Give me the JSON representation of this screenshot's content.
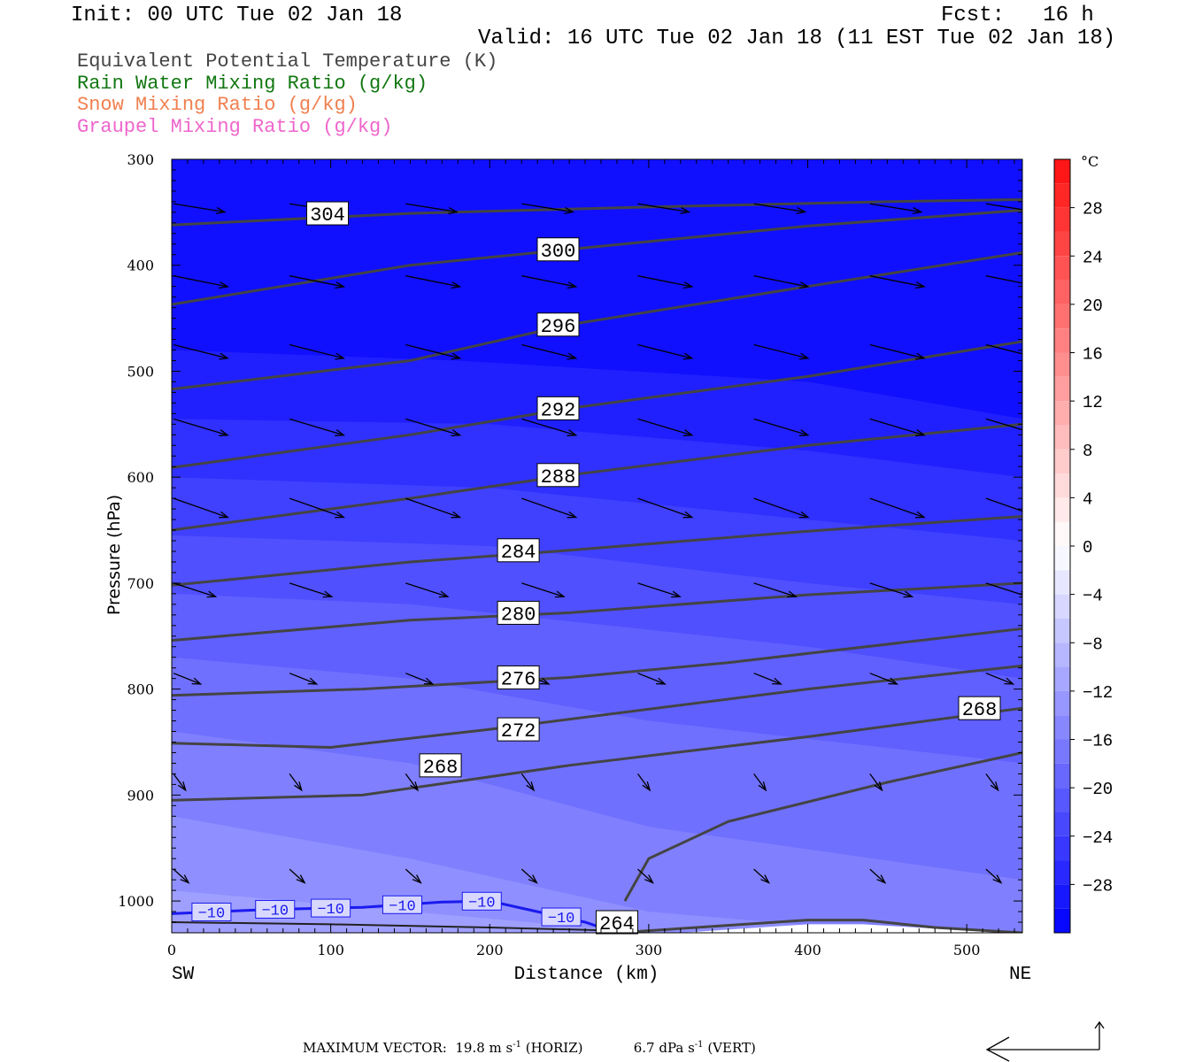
{
  "header": {
    "init": "Init: 00 UTC Tue 02 Jan 18",
    "fcst": "Fcst:   16 h",
    "valid": "Valid: 16 UTC Tue 02 Jan 18 (11 EST Tue 02 Jan 18)"
  },
  "fields": {
    "theta_e": "Equivalent Potential Temperature (K)",
    "rain": "Rain Water Mixing Ratio (g/kg)",
    "snow": "Snow Mixing Ratio (g/kg)",
    "graupel": "Graupel Mixing Ratio (g/kg)"
  },
  "colors": {
    "theta_e": "#444444",
    "rain": "#117711",
    "snow": "#f08050",
    "graupel": "#ee66cc",
    "minus10": "#1a1aee"
  },
  "footer": {
    "max_vector_label": "MAXIMUM VECTOR:",
    "horiz": "19.8 m s",
    "horiz_sup": "-1",
    "horiz_tag": "(HORIZ)",
    "vert": "6.7 dPa s",
    "vert_sup": "-1",
    "vert_tag": "(VERT)"
  },
  "chart_data": {
    "type": "contour",
    "xlabel": "Distance (km)",
    "ylabel": "Pressure (hPa)",
    "x_end_labels": [
      "SW",
      "NE"
    ],
    "xlim": [
      0,
      535
    ],
    "ylim": [
      1030,
      300
    ],
    "x_ticks": [
      0,
      100,
      200,
      300,
      400,
      500
    ],
    "y_ticks": [
      300,
      400,
      500,
      600,
      700,
      800,
      900,
      1000
    ],
    "colorbar": {
      "unit": "°C",
      "range": [
        -32,
        32
      ],
      "tick_labels": [
        "28",
        "24",
        "20",
        "16",
        "12",
        "8",
        "4",
        "0",
        "−4",
        "−8",
        "−12",
        "−16",
        "−20",
        "−24",
        "−28"
      ],
      "tick_values": [
        28,
        24,
        20,
        16,
        12,
        8,
        4,
        0,
        -4,
        -8,
        -12,
        -16,
        -20,
        -24,
        -28
      ]
    },
    "temperature_shading": [
      {
        "level": -30,
        "p": [
          [
            0,
            1050
          ],
          [
            535,
            1050
          ]
        ]
      },
      {
        "level": -28,
        "p": [
          [
            0,
            480
          ],
          [
            180,
            490
          ],
          [
            400,
            510
          ],
          [
            535,
            545
          ]
        ]
      },
      {
        "level": -26,
        "p": [
          [
            0,
            545
          ],
          [
            200,
            550
          ],
          [
            400,
            575
          ],
          [
            535,
            600
          ]
        ]
      },
      {
        "level": -24,
        "p": [
          [
            0,
            600
          ],
          [
            200,
            610
          ],
          [
            400,
            640
          ],
          [
            535,
            660
          ]
        ]
      },
      {
        "level": -22,
        "p": [
          [
            0,
            655
          ],
          [
            200,
            665
          ],
          [
            400,
            700
          ],
          [
            535,
            720
          ]
        ]
      },
      {
        "level": -20,
        "p": [
          [
            0,
            710
          ],
          [
            150,
            720
          ],
          [
            400,
            760
          ],
          [
            535,
            790
          ]
        ]
      },
      {
        "level": -18,
        "p": [
          [
            0,
            770
          ],
          [
            150,
            790
          ],
          [
            300,
            830
          ],
          [
            535,
            870
          ]
        ]
      },
      {
        "level": -16,
        "p": [
          [
            0,
            840
          ],
          [
            150,
            870
          ],
          [
            300,
            930
          ],
          [
            535,
            980
          ]
        ]
      },
      {
        "level": -14,
        "p": [
          [
            0,
            920
          ],
          [
            150,
            960
          ],
          [
            300,
            1010
          ],
          [
            535,
            1040
          ]
        ]
      },
      {
        "level": -12,
        "p": [
          [
            0,
            990
          ],
          [
            150,
            1010
          ],
          [
            300,
            1030
          ],
          [
            535,
            1050
          ]
        ]
      }
    ],
    "theta_e_contours": [
      {
        "label": "304",
        "points": [
          [
            0,
            362
          ],
          [
            150,
            351
          ],
          [
            300,
            345
          ],
          [
            450,
            340
          ],
          [
            535,
            338
          ]
        ]
      },
      {
        "label": "300",
        "points": [
          [
            0,
            437
          ],
          [
            150,
            400
          ],
          [
            250,
            385
          ],
          [
            400,
            363
          ],
          [
            535,
            348
          ]
        ]
      },
      {
        "label": "296",
        "points": [
          [
            0,
            517
          ],
          [
            150,
            490
          ],
          [
            250,
            456
          ],
          [
            400,
            420
          ],
          [
            535,
            388
          ]
        ]
      },
      {
        "label": "292",
        "points": [
          [
            0,
            591
          ],
          [
            150,
            560
          ],
          [
            250,
            535
          ],
          [
            400,
            505
          ],
          [
            535,
            472
          ]
        ]
      },
      {
        "label": "288",
        "points": [
          [
            0,
            650
          ],
          [
            150,
            620
          ],
          [
            250,
            598
          ],
          [
            400,
            570
          ],
          [
            535,
            550
          ]
        ]
      },
      {
        "label": "284",
        "points": [
          [
            0,
            702
          ],
          [
            150,
            680
          ],
          [
            250,
            669
          ],
          [
            400,
            651
          ],
          [
            535,
            637
          ]
        ]
      },
      {
        "label": "280",
        "points": [
          [
            0,
            754
          ],
          [
            150,
            735
          ],
          [
            250,
            728
          ],
          [
            400,
            711
          ],
          [
            535,
            700
          ]
        ]
      },
      {
        "label": "276",
        "points": [
          [
            0,
            806
          ],
          [
            120,
            800
          ],
          [
            250,
            789
          ],
          [
            350,
            775
          ],
          [
            535,
            743
          ]
        ]
      },
      {
        "label": "272",
        "points": [
          [
            0,
            851
          ],
          [
            100,
            855
          ],
          [
            200,
            838
          ],
          [
            400,
            800
          ],
          [
            535,
            778
          ]
        ]
      },
      {
        "label": "268",
        "points": [
          [
            0,
            905
          ],
          [
            120,
            900
          ],
          [
            250,
            872
          ],
          [
            400,
            845
          ],
          [
            535,
            818
          ]
        ]
      },
      {
        "label": "268",
        "points": [
          [
            285,
            1000
          ],
          [
            300,
            960
          ],
          [
            350,
            925
          ],
          [
            450,
            888
          ],
          [
            535,
            860
          ]
        ]
      },
      {
        "label": "264",
        "points": [
          [
            280,
            1030
          ],
          [
            400,
            1018
          ],
          [
            435,
            1018
          ],
          [
            480,
            1025
          ],
          [
            535,
            1030
          ]
        ]
      }
    ],
    "minus10_isotherm": {
      "label": "−10",
      "points": [
        [
          0,
          1012
        ],
        [
          60,
          1008
        ],
        [
          120,
          1006
        ],
        [
          170,
          1001
        ],
        [
          200,
          1000
        ],
        [
          230,
          1010
        ],
        [
          260,
          1020
        ],
        [
          280,
          1030
        ]
      ],
      "label_positions": [
        25,
        65,
        100,
        145,
        195,
        245
      ]
    },
    "contour_label_positions": {
      "304": [
        98,
        351
      ],
      "300": [
        243,
        385
      ],
      "296": [
        243,
        456
      ],
      "292": [
        243,
        535
      ],
      "288": [
        243,
        598
      ],
      "284": [
        218,
        669
      ],
      "280": [
        218,
        728
      ],
      "276": [
        218,
        789
      ],
      "272": [
        218,
        838
      ],
      "268a": [
        169,
        872
      ],
      "268b": [
        508,
        818
      ],
      "264": [
        280,
        1020
      ]
    },
    "wind_vectors": {
      "x_positions": [
        0,
        73,
        146,
        219,
        292,
        365,
        438,
        511
      ],
      "levels": [
        {
          "p": 342,
          "u": 34,
          "v": -6
        },
        {
          "p": 410,
          "u": 36,
          "v": -8
        },
        {
          "p": 475,
          "u": 36,
          "v": -10
        },
        {
          "p": 545,
          "u": 36,
          "v": -12
        },
        {
          "p": 620,
          "u": 36,
          "v": -14
        },
        {
          "p": 700,
          "u": 28,
          "v": -10
        },
        {
          "p": 785,
          "u": 18,
          "v": -8
        },
        {
          "p": 880,
          "u": 8,
          "v": -12
        },
        {
          "p": 970,
          "u": 10,
          "v": -10
        }
      ]
    },
    "max_vector": {
      "horiz": 19.8,
      "vert": 6.7
    }
  }
}
